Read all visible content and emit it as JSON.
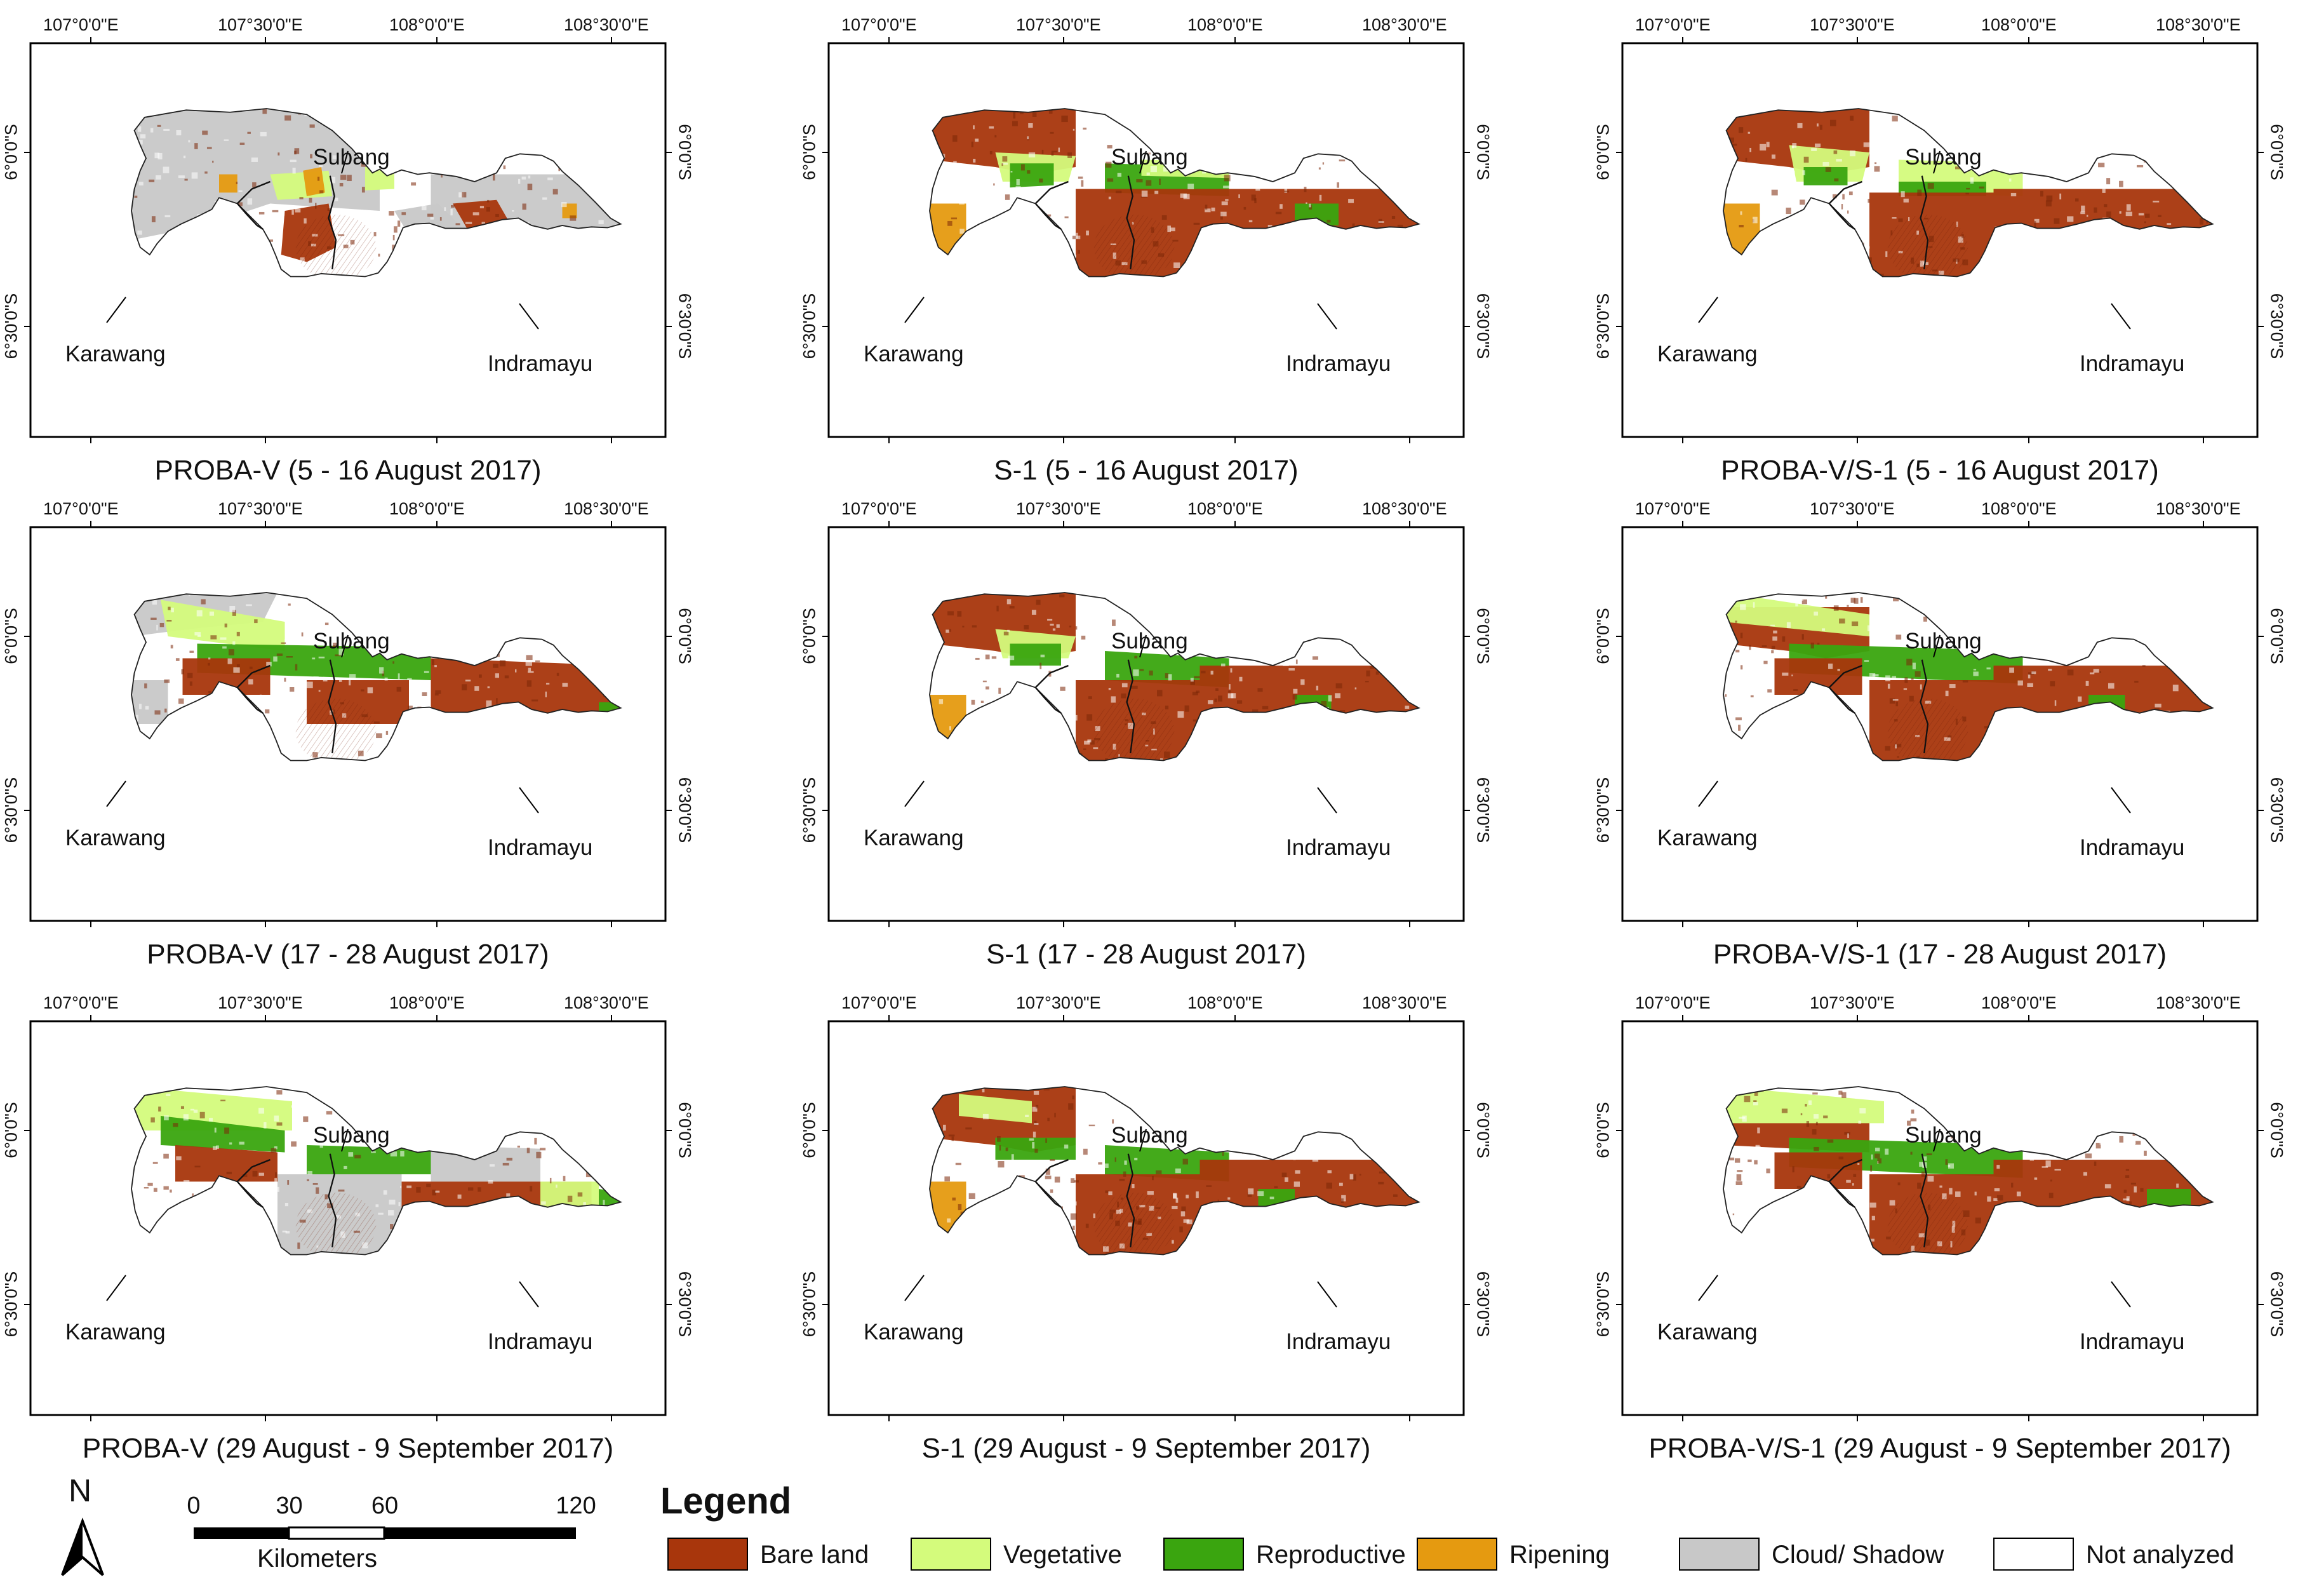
{
  "figure": {
    "longitude_ticks": [
      "107°0'0\"E",
      "107°30'0\"E",
      "108°0'0\"E",
      "108°30'0\"E"
    ],
    "latitude_ticks": [
      "6°0'0\"S",
      "6°30'0\"S"
    ],
    "place_names": {
      "subang": "Subang",
      "karawang": "Karawang",
      "indramayu": "Indramayu"
    }
  },
  "panels": [
    {
      "caption": "PROBA-V (5 - 16 August 2017)",
      "sensor": "PROBA-V",
      "period": "5 - 16 August 2017"
    },
    {
      "caption": "S-1 (5 - 16 August 2017)",
      "sensor": "S-1",
      "period": "5 - 16 August 2017"
    },
    {
      "caption": "PROBA-V/S-1 (5 - 16 August 2017)",
      "sensor": "PROBA-V/S-1",
      "period": "5 - 16 August 2017"
    },
    {
      "caption": "PROBA-V (17 - 28 August 2017)",
      "sensor": "PROBA-V",
      "period": "17 - 28 August 2017"
    },
    {
      "caption": "S-1 (17 - 28 August 2017)",
      "sensor": "S-1",
      "period": "17 - 28 August 2017"
    },
    {
      "caption": "PROBA-V/S-1 (17 - 28 August 2017)",
      "sensor": "PROBA-V/S-1",
      "period": "17 - 28 August 2017"
    },
    {
      "caption": "PROBA-V (29 August - 9 September 2017)",
      "sensor": "PROBA-V",
      "period": "29 August - 9 September 2017"
    },
    {
      "caption": "S-1 (29 August - 9 September 2017)",
      "sensor": "S-1",
      "period": "29 August - 9 September 2017"
    },
    {
      "caption": "PROBA-V/S-1 (29 August - 9 September 2017)",
      "sensor": "PROBA-V/S-1",
      "period": "29 August - 9 September 2017"
    }
  ],
  "north_arrow": {
    "label": "N"
  },
  "scale_bar": {
    "ticks": [
      "0",
      "30",
      "60",
      "120"
    ],
    "unit": "Kilometers"
  },
  "legend": {
    "title": "Legend",
    "items": [
      {
        "label": "Bare land",
        "color": "#a8360c"
      },
      {
        "label": "Vegetative",
        "color": "#d4fb7c"
      },
      {
        "label": "Reproductive",
        "color": "#3aa50f"
      },
      {
        "label": "Ripening",
        "color": "#e59a10"
      },
      {
        "label": "Cloud/ Shadow",
        "color": "#c8c8c8"
      },
      {
        "label": "Not analyzed",
        "color": "#ffffff"
      }
    ]
  }
}
